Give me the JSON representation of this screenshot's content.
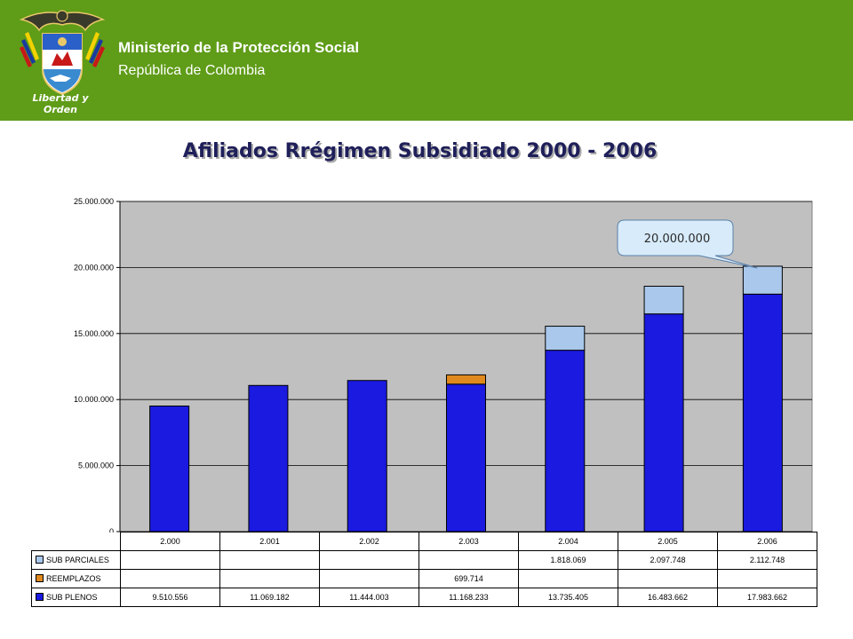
{
  "header": {
    "ministry": "Ministerio de la Protección Social",
    "republic": "República de Colombia",
    "motto": "Libertad y Orden",
    "logo_icon": "coat-of-arms-colombia-icon",
    "background_color": "#5f9c18"
  },
  "chart_data": {
    "type": "bar",
    "stacked": true,
    "title": "Afiliados Rrégimen Subsidiado 2000 - 2006",
    "categories": [
      "2.000",
      "2.001",
      "2.002",
      "2.003",
      "2.004",
      "2.005",
      "2.006"
    ],
    "series": [
      {
        "name": "SUB PLENOS",
        "color": "#1a1ae0",
        "values": [
          9510556,
          11069182,
          11444003,
          11168233,
          13735405,
          16483662,
          17983662
        ]
      },
      {
        "name": "REEMPLAZOS",
        "color": "#e08a1e",
        "values": [
          0,
          0,
          0,
          699714,
          0,
          0,
          0
        ]
      },
      {
        "name": "SUB PARCIALES",
        "color": "#a9c8ec",
        "values": [
          0,
          0,
          0,
          0,
          1818069,
          2097748,
          2112748
        ]
      }
    ],
    "yticks": [
      "0",
      "5.000.000",
      "10.000.000",
      "15.000.000",
      "20.000.000",
      "25.000.000"
    ],
    "ylim": [
      0,
      25000000
    ],
    "grid": true,
    "plot_background": "#c0c0c0",
    "callout": {
      "text": "20.000.000",
      "category": "2.006"
    },
    "table": {
      "rows": [
        {
          "label": "SUB PARCIALES",
          "cells": [
            "",
            "",
            "",
            "",
            "1.818.069",
            "2.097.748",
            "2.112.748"
          ]
        },
        {
          "label": "REEMPLAZOS",
          "cells": [
            "",
            "",
            "",
            "699.714",
            "",
            "",
            ""
          ]
        },
        {
          "label": "SUB PLENOS",
          "cells": [
            "9.510.556",
            "11.069.182",
            "11.444.003",
            "11.168.233",
            "13.735.405",
            "16.483.662",
            "17.983.662"
          ]
        }
      ]
    }
  }
}
